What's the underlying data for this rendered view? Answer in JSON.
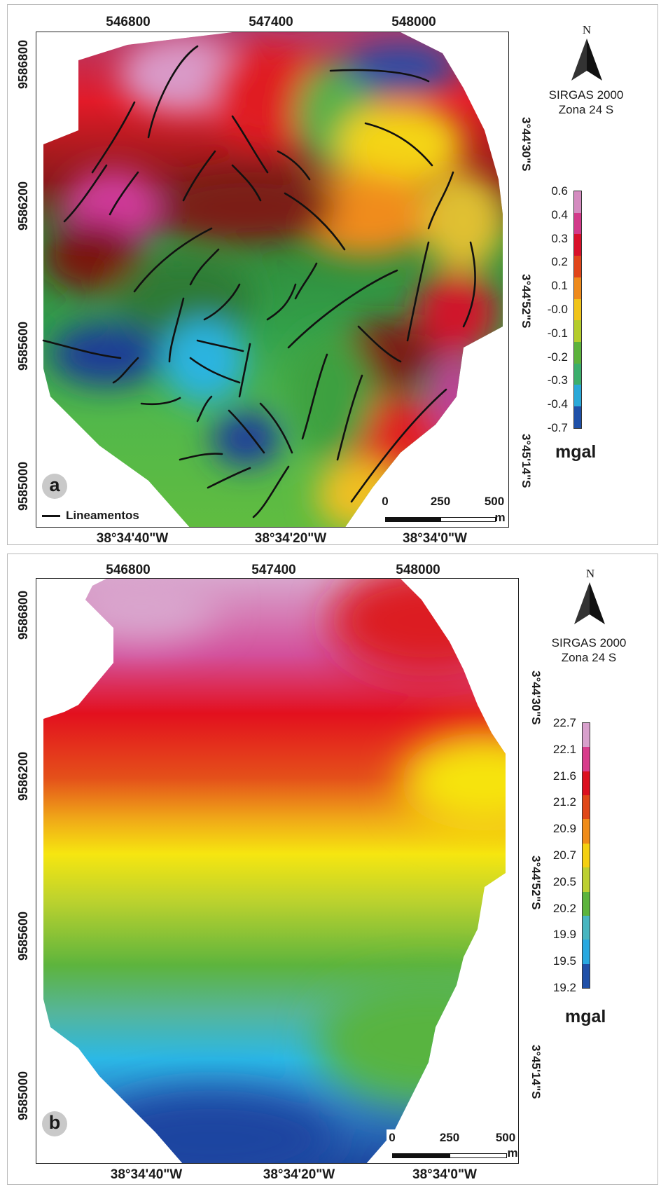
{
  "panel_a": {
    "label": "a",
    "top_ticks": [
      "546800",
      "547400",
      "548000"
    ],
    "left_ticks": [
      "9586800",
      "9586200",
      "9585600",
      "9585000"
    ],
    "right_ticks": [
      "3°44'30\"S",
      "3°44'52\"S",
      "3°45'14\"S"
    ],
    "bottom_ticks": [
      "38°34'40\"W",
      "38°34'20\"W",
      "38°34'0\"W"
    ],
    "north": "N",
    "datum": [
      "SIRGAS 2000",
      "Zona 24 S"
    ],
    "colorbar": {
      "labels": [
        "0.6",
        "0.4",
        "0.3",
        "0.2",
        "0.1",
        "-0.0",
        "-0.1",
        "-0.2",
        "-0.3",
        "-0.4",
        "-0.7"
      ],
      "colors": [
        "#d48cc0",
        "#d23a8a",
        "#d8102a",
        "#e0451a",
        "#ee8a1c",
        "#f0c41a",
        "#b4cc2c",
        "#5cb23c",
        "#3cae6c",
        "#2aa8d8",
        "#1f50a8"
      ],
      "unit": "mgal"
    },
    "scalebar": {
      "labels": [
        "0",
        "250",
        "500"
      ],
      "unit": "m"
    },
    "legend": "Lineamentos"
  },
  "panel_b": {
    "label": "b",
    "top_ticks": [
      "546800",
      "547400",
      "548000"
    ],
    "left_ticks": [
      "9586800",
      "9586200",
      "9585600",
      "9585000"
    ],
    "right_ticks": [
      "3°44'30\"S",
      "3°44'52\"S",
      "3°45'14\"S"
    ],
    "bottom_ticks": [
      "38°34'40\"W",
      "38°34'20\"W",
      "38°34'0\"W"
    ],
    "north": "N",
    "datum": [
      "SIRGAS 2000",
      "Zona 24 S"
    ],
    "colorbar": {
      "labels": [
        "22.7",
        "22.1",
        "21.6",
        "21.2",
        "20.9",
        "20.7",
        "20.5",
        "20.2",
        "19.9",
        "19.5",
        "19.2"
      ],
      "colors": [
        "#d8a0cc",
        "#d83c8c",
        "#dc1020",
        "#e04818",
        "#f08c18",
        "#f4d010",
        "#bcd030",
        "#5cb43c",
        "#48b6c0",
        "#28a8e0",
        "#2050a8"
      ],
      "unit": "mgal"
    },
    "scalebar": {
      "labels": [
        "0",
        "250",
        "500"
      ],
      "unit": "m"
    }
  }
}
